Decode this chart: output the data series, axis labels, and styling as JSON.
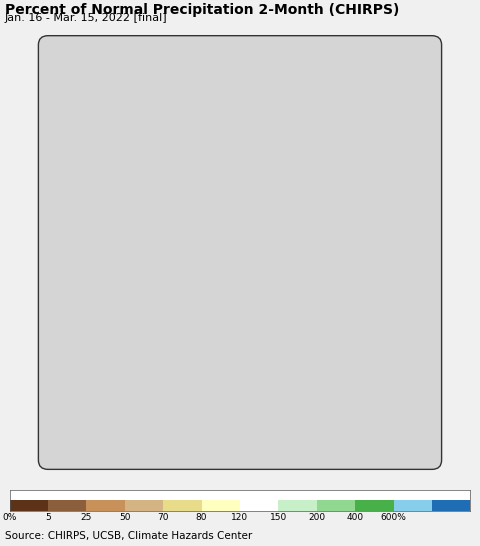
{
  "title": "Percent of Normal Precipitation 2-Month (CHIRPS)",
  "subtitle": "Jan. 16 - Mar. 15, 2022 [final]",
  "source": "Source: CHIRPS, UCSB, Climate Hazards Center",
  "colorbar_labels": [
    "0%",
    "5",
    "25",
    "50",
    "70",
    "80",
    "120",
    "150",
    "200",
    "400",
    "600%"
  ],
  "colorbar_colors": [
    "#5c3317",
    "#8b5e3c",
    "#c8915a",
    "#d4b483",
    "#e8dc8a",
    "#ffffc0",
    "#ffffff",
    "#c8f0c8",
    "#90d890",
    "#48b048",
    "#87ceeb",
    "#1e6db5"
  ],
  "background_color": "#f0f0f0",
  "ocean_color": "#b3e8f5",
  "land_outside_color": "#d5d5d5",
  "title_fontsize": 10,
  "subtitle_fontsize": 8,
  "source_fontsize": 7.5,
  "map_extent": [
    55,
    105,
    4,
    42
  ]
}
